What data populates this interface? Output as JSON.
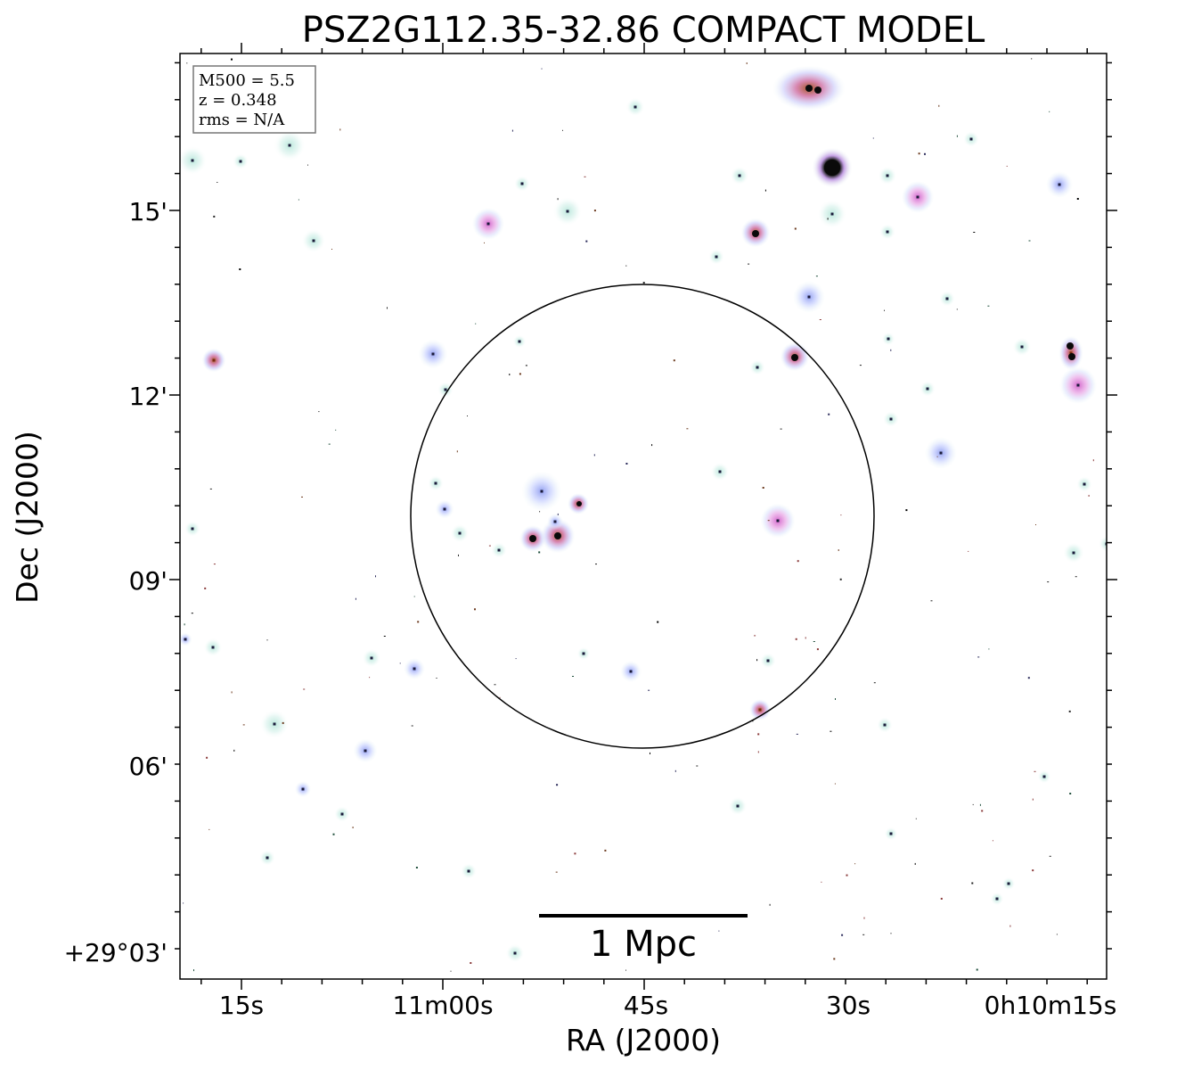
{
  "title": "PSZ2G112.35-32.86 COMPACT MODEL",
  "xlabel": "RA (J2000)",
  "ylabel": "Dec (J2000)",
  "ra_ticks": [
    "15s",
    "11m00s",
    "45s",
    "30s",
    "0h10m15s"
  ],
  "dec_ticks": [
    "15'",
    "12'",
    "09'",
    "06'",
    "+29°03'"
  ],
  "info": {
    "mass": "M500 = 5.5",
    "redshift": "z = 0.348",
    "rms": "rms = N/A"
  },
  "scale_bar": {
    "label": "1 Mpc"
  },
  "colors": {
    "glow_cyan": "#cfeee6",
    "glow_blue": "#b9c6ff",
    "glow_pink": "#e596dc",
    "core_orange": "#c0703a",
    "frame": "#000000"
  }
}
